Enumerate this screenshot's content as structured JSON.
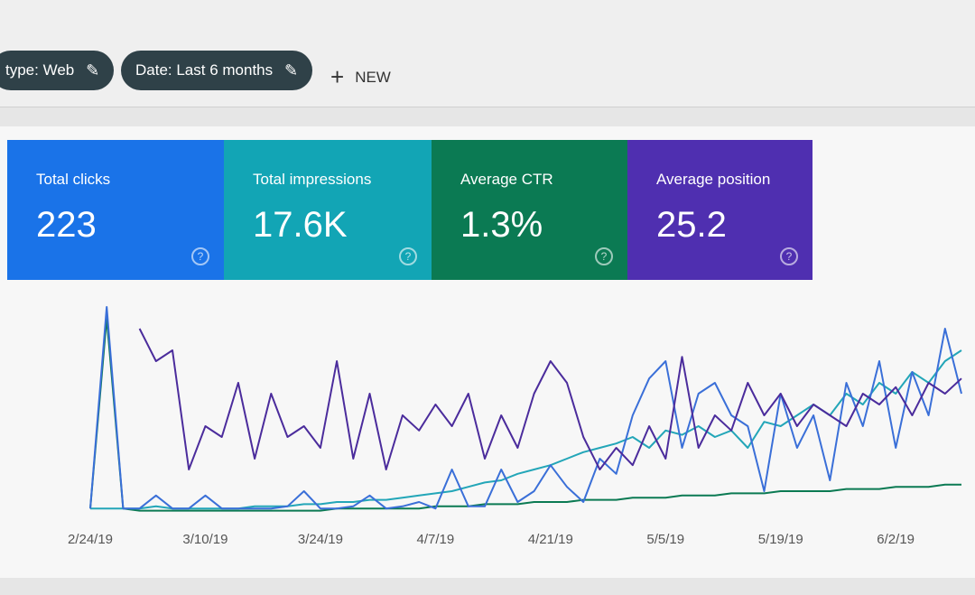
{
  "toolbar": {
    "chips": [
      "type: Web",
      "Date: Last 6 months"
    ],
    "new_button": "NEW"
  },
  "metrics": [
    {
      "label": "Total clicks",
      "value": "223",
      "color": "#1a73e8"
    },
    {
      "label": "Total impressions",
      "value": "17.6K",
      "color": "#12a5b5"
    },
    {
      "label": "Average CTR",
      "value": "1.3%",
      "color": "#0b7a53"
    },
    {
      "label": "Average position",
      "value": "25.2",
      "color": "#4f2fb0"
    }
  ],
  "chart_data": {
    "type": "line",
    "categories": [
      "2/24/19",
      null,
      null,
      null,
      null,
      null,
      null,
      "3/10/19",
      null,
      null,
      null,
      null,
      null,
      null,
      "3/24/19",
      null,
      null,
      null,
      null,
      null,
      null,
      "4/7/19",
      null,
      null,
      null,
      null,
      null,
      null,
      "4/21/19",
      null,
      null,
      null,
      null,
      null,
      null,
      "5/5/19",
      null,
      null,
      null,
      null,
      null,
      null,
      "5/19/19",
      null,
      null,
      null,
      null,
      null,
      null,
      "6/2/19",
      null,
      null,
      null,
      null
    ],
    "series": [
      {
        "color": "#0b7a53",
        "values": [
          2,
          90,
          2,
          1,
          1,
          1,
          1,
          1,
          1,
          1,
          1,
          1,
          1,
          1,
          1,
          2,
          2,
          2,
          2,
          2,
          2,
          3,
          3,
          3,
          4,
          4,
          4,
          5,
          5,
          5,
          6,
          6,
          6,
          7,
          7,
          7,
          8,
          8,
          8,
          9,
          9,
          9,
          10,
          10,
          10,
          10,
          11,
          11,
          11,
          12,
          12,
          12,
          13,
          13
        ]
      },
      {
        "color": "#23a6b8",
        "values": [
          2,
          2,
          2,
          2,
          3,
          2,
          2,
          2,
          2,
          2,
          3,
          3,
          3,
          4,
          4,
          5,
          5,
          6,
          6,
          7,
          8,
          9,
          10,
          12,
          14,
          15,
          18,
          20,
          22,
          25,
          28,
          30,
          32,
          35,
          30,
          38,
          36,
          40,
          35,
          38,
          30,
          42,
          40,
          45,
          50,
          45,
          55,
          50,
          60,
          55,
          65,
          60,
          70,
          75
        ]
      },
      {
        "color": "#3a6fd8",
        "values": [
          2,
          95,
          2,
          2,
          8,
          2,
          2,
          8,
          2,
          2,
          2,
          2,
          3,
          10,
          2,
          2,
          3,
          8,
          2,
          3,
          5,
          2,
          20,
          3,
          3,
          20,
          5,
          10,
          22,
          12,
          5,
          25,
          18,
          45,
          62,
          70,
          30,
          55,
          60,
          45,
          40,
          10,
          55,
          30,
          45,
          15,
          60,
          40,
          70,
          30,
          65,
          45,
          85,
          55
        ]
      },
      {
        "color": "#4b2c9c",
        "values": [
          null,
          null,
          null,
          85,
          70,
          75,
          20,
          40,
          35,
          60,
          25,
          55,
          35,
          40,
          30,
          70,
          25,
          55,
          20,
          45,
          38,
          50,
          40,
          55,
          25,
          45,
          30,
          55,
          70,
          60,
          35,
          20,
          30,
          22,
          40,
          25,
          72,
          30,
          45,
          38,
          60,
          45,
          55,
          40,
          50,
          45,
          40,
          55,
          50,
          58,
          45,
          60,
          55,
          62
        ]
      }
    ]
  }
}
